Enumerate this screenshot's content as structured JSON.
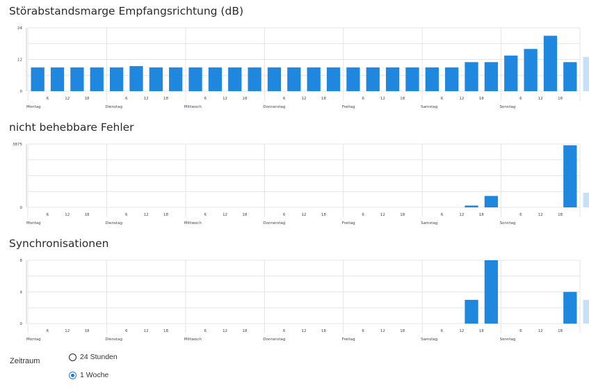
{
  "colors": {
    "bar": "#1f87de",
    "bar_current": "#c5e0f7",
    "grid": "#e4e4e4",
    "axis": "#cfcfcf",
    "marker": "#8fb8df"
  },
  "chart_data": [
    {
      "type": "bar",
      "title": "Störabstandsmarge Empfangsrichtung (dB)",
      "day_labels": [
        "Montag",
        "Dienstag",
        "Mittwoch",
        "Donnerstag",
        "Freitag",
        "Samstag",
        "Sonntag"
      ],
      "hour_labels": [
        "6",
        "12",
        "18"
      ],
      "y_tick_labels": [
        "0",
        "12",
        "24"
      ],
      "ylim": [
        0,
        24
      ],
      "values": [
        9,
        9,
        9,
        9,
        9,
        9.5,
        9,
        9,
        9,
        9,
        9,
        9,
        9,
        9,
        9,
        9,
        9,
        9,
        9,
        9,
        9,
        9,
        11,
        11,
        13.5,
        16,
        21,
        11,
        13
      ],
      "current_index": 28
    },
    {
      "type": "bar",
      "title": "nicht behebbare Fehler",
      "day_labels": [
        "Montag",
        "Dienstag",
        "Mittwoch",
        "Donnerstag",
        "Freitag",
        "Samstag",
        "Sonntag"
      ],
      "hour_labels": [
        "6",
        "12",
        "18"
      ],
      "y_tick_labels": [
        "0",
        "3875"
      ],
      "ylim": [
        0,
        3875
      ],
      "values": [
        0,
        0,
        0,
        0,
        0,
        0,
        0,
        0,
        0,
        0,
        0,
        0,
        0,
        0,
        0,
        0,
        0,
        0,
        0,
        0,
        0,
        0,
        110,
        700,
        0,
        0,
        0,
        3800,
        900
      ],
      "current_index": 28
    },
    {
      "type": "bar",
      "title": "Synchronisationen",
      "day_labels": [
        "Montag",
        "Dienstag",
        "Mittwoch",
        "Donnerstag",
        "Freitag",
        "Samstag",
        "Sonntag"
      ],
      "hour_labels": [
        "6",
        "12",
        "18"
      ],
      "y_tick_labels": [
        "0",
        "4",
        "8"
      ],
      "ylim": [
        0,
        8
      ],
      "values": [
        0,
        0,
        0,
        0,
        0,
        0,
        0,
        0,
        0,
        0,
        0,
        0,
        0,
        0,
        0,
        0,
        0,
        0,
        0,
        0,
        0,
        0,
        3,
        8,
        0,
        0,
        0,
        4,
        3
      ],
      "current_index": 28
    }
  ],
  "controls": {
    "zeitraum_label": "Zeitraum",
    "options": [
      {
        "label": "24 Stunden",
        "selected": false
      },
      {
        "label": "1 Woche",
        "selected": true
      }
    ]
  }
}
